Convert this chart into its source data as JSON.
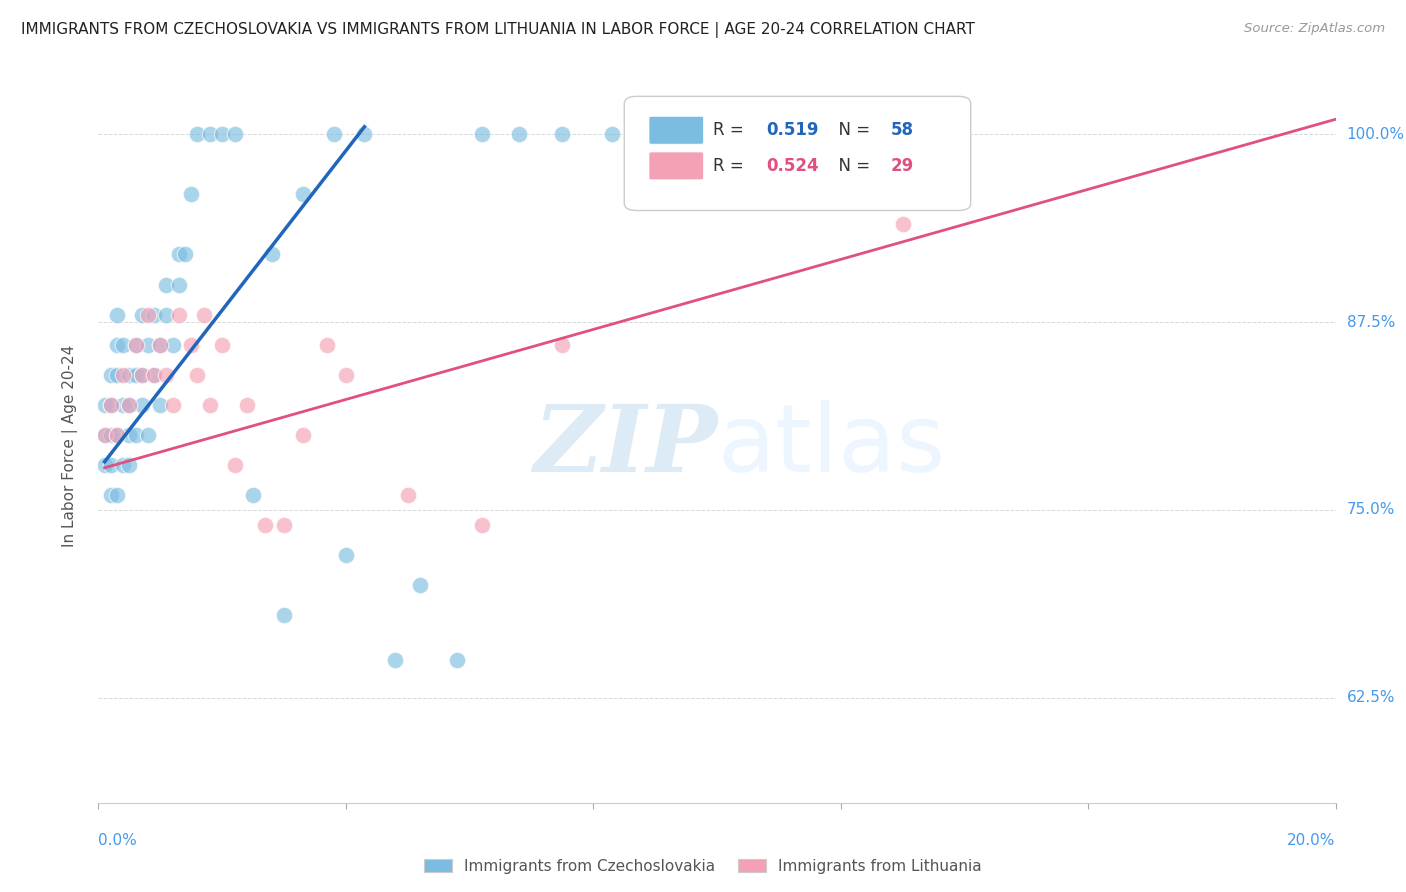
{
  "title": "IMMIGRANTS FROM CZECHOSLOVAKIA VS IMMIGRANTS FROM LITHUANIA IN LABOR FORCE | AGE 20-24 CORRELATION CHART",
  "source": "Source: ZipAtlas.com",
  "ylabel": "In Labor Force | Age 20-24",
  "xlim": [
    0.0,
    0.2
  ],
  "ylim": [
    0.555,
    1.03
  ],
  "xticks": [
    0.0,
    0.04,
    0.08,
    0.12,
    0.16,
    0.2
  ],
  "xticklabels_left": "0.0%",
  "xticklabels_right": "20.0%",
  "yticks": [
    0.625,
    0.75,
    0.875,
    1.0
  ],
  "yticklabels": [
    "62.5%",
    "75.0%",
    "87.5%",
    "100.0%"
  ],
  "blue_color": "#7bbde0",
  "pink_color": "#f4a0b5",
  "blue_line_color": "#2266bb",
  "pink_line_color": "#e05080",
  "legend_blue_r": "R = ",
  "legend_blue_rval": "0.519",
  "legend_blue_n": "  N = ",
  "legend_blue_nval": "58",
  "legend_pink_r": "R = ",
  "legend_pink_rval": "0.524",
  "legend_pink_n": "  N = ",
  "legend_pink_nval": "29",
  "footer_blue_label": "Immigrants from Czechoslovakia",
  "footer_pink_label": "Immigrants from Lithuania",
  "watermark_zip": "ZIP",
  "watermark_atlas": "atlas",
  "blue_scatter_x": [
    0.001,
    0.001,
    0.001,
    0.002,
    0.002,
    0.002,
    0.002,
    0.002,
    0.003,
    0.003,
    0.003,
    0.003,
    0.003,
    0.004,
    0.004,
    0.004,
    0.005,
    0.005,
    0.005,
    0.005,
    0.006,
    0.006,
    0.006,
    0.007,
    0.007,
    0.007,
    0.008,
    0.008,
    0.009,
    0.009,
    0.01,
    0.01,
    0.011,
    0.011,
    0.012,
    0.013,
    0.013,
    0.014,
    0.015,
    0.016,
    0.018,
    0.02,
    0.022,
    0.025,
    0.028,
    0.03,
    0.033,
    0.038,
    0.04,
    0.043,
    0.048,
    0.052,
    0.058,
    0.062,
    0.068,
    0.075,
    0.083,
    0.093
  ],
  "blue_scatter_y": [
    0.8,
    0.82,
    0.78,
    0.76,
    0.8,
    0.84,
    0.78,
    0.82,
    0.76,
    0.8,
    0.84,
    0.86,
    0.88,
    0.78,
    0.82,
    0.86,
    0.8,
    0.84,
    0.78,
    0.82,
    0.8,
    0.84,
    0.86,
    0.82,
    0.84,
    0.88,
    0.8,
    0.86,
    0.84,
    0.88,
    0.82,
    0.86,
    0.88,
    0.9,
    0.86,
    0.9,
    0.92,
    0.92,
    0.96,
    1.0,
    1.0,
    1.0,
    1.0,
    0.76,
    0.92,
    0.68,
    0.96,
    1.0,
    0.72,
    1.0,
    0.65,
    0.7,
    0.65,
    1.0,
    1.0,
    1.0,
    1.0,
    1.0
  ],
  "pink_scatter_x": [
    0.001,
    0.002,
    0.003,
    0.004,
    0.005,
    0.006,
    0.007,
    0.008,
    0.009,
    0.01,
    0.011,
    0.012,
    0.013,
    0.015,
    0.016,
    0.017,
    0.018,
    0.02,
    0.022,
    0.024,
    0.027,
    0.03,
    0.033,
    0.037,
    0.04,
    0.05,
    0.062,
    0.075,
    0.13
  ],
  "pink_scatter_y": [
    0.8,
    0.82,
    0.8,
    0.84,
    0.82,
    0.86,
    0.84,
    0.88,
    0.84,
    0.86,
    0.84,
    0.82,
    0.88,
    0.86,
    0.84,
    0.88,
    0.82,
    0.86,
    0.78,
    0.82,
    0.74,
    0.74,
    0.8,
    0.86,
    0.84,
    0.76,
    0.74,
    0.86,
    0.94
  ],
  "blue_line_x": [
    0.001,
    0.043
  ],
  "blue_line_y": [
    0.782,
    1.005
  ],
  "pink_line_x": [
    0.001,
    0.2
  ],
  "pink_line_y": [
    0.778,
    1.01
  ],
  "background_color": "#ffffff",
  "grid_color": "#d8d8d8",
  "tick_color": "#4499ee",
  "ytick_label_color": "#4499ee",
  "xtick_label_color": "#4499ee"
}
